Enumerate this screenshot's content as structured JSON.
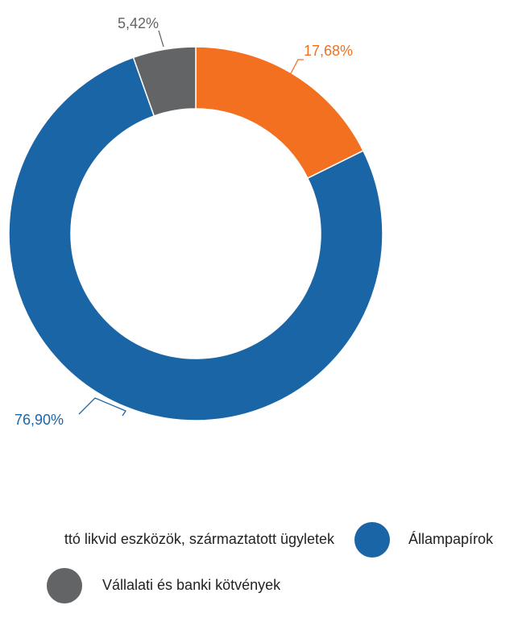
{
  "chart_data": {
    "type": "donut",
    "categories": [
      "ttó likvid eszközök, származtatott ügyletek",
      "Állampapírok",
      "Vállalati és banki kötvények"
    ],
    "values": [
      17.68,
      76.9,
      5.42
    ],
    "value_labels": [
      "17,68%",
      "76,90%",
      "5,42%"
    ],
    "colors": [
      "#f37021",
      "#1a65a6",
      "#636466"
    ]
  }
}
